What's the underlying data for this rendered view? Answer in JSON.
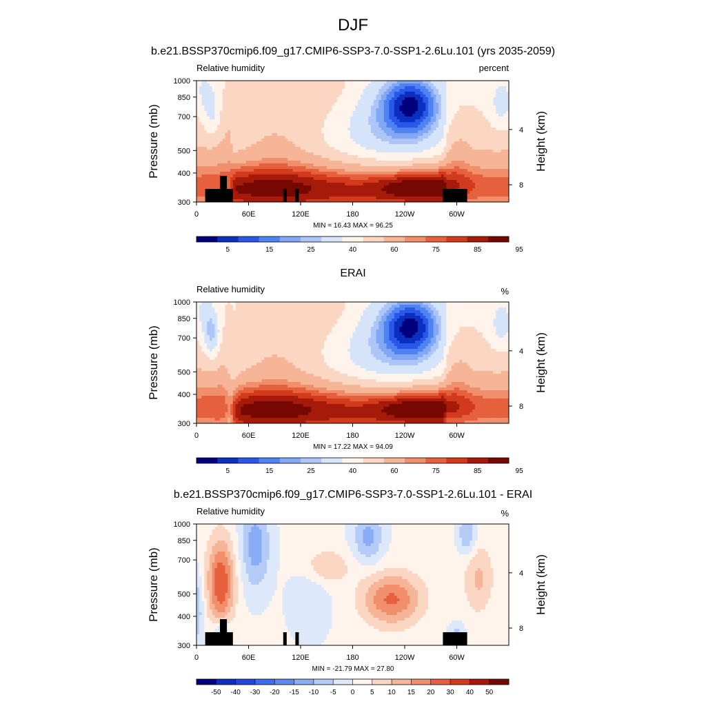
{
  "figure": {
    "title": "DJF",
    "panel_titles": [
      "b.e21.BSSP370cmip6.f09_g17.CMIP6-SSP3-7.0-SSP1-2.6Lu.101 (yrs 2035-2059)",
      "ERAI",
      "b.e21.BSSP370cmip6.f09_g17.CMIP6-SSP3-7.0-SSP1-2.6Lu.101 - ERAI"
    ]
  },
  "chart_data": [
    {
      "type": "heatmap",
      "variable_label": "Relative humidity",
      "units_label": "percent",
      "ylabel": "Pressure (mb)",
      "y2label": "Height (km)",
      "x_ticks": [
        "0",
        "60E",
        "120E",
        "180",
        "120W",
        "60W"
      ],
      "x_tick_lon": [
        0,
        60,
        120,
        180,
        240,
        300
      ],
      "xlim": [
        0,
        360
      ],
      "y_ticks": [
        "300",
        "400",
        "500",
        "700",
        "850",
        "1000"
      ],
      "y_tick_p": [
        300,
        400,
        500,
        700,
        850,
        1000
      ],
      "ylim": [
        1000,
        300
      ],
      "y_scale": "log",
      "y2_ticks": [
        "4",
        "8"
      ],
      "stats": "MIN =  16.43  MAX =  96.25",
      "min": 16.43,
      "max": 96.25,
      "colorbar_labels": [
        "5",
        "15",
        "25",
        "40",
        "60",
        "75",
        "85",
        "95"
      ],
      "colorbar_colors": [
        "#00007f",
        "#0b2fbf",
        "#2a57e8",
        "#4f82f2",
        "#82a8f5",
        "#aec6f7",
        "#d6e4fa",
        "#fff4ec",
        "#fbd6c2",
        "#f7b598",
        "#f18e6c",
        "#e7603e",
        "#d33a1c",
        "#a61a0a",
        "#760800"
      ],
      "topography_blocks": [
        [
          10,
          27
        ],
        [
          27,
          35
        ],
        [
          35,
          42
        ],
        [
          100,
          104
        ],
        [
          114,
          118
        ],
        [
          284,
          312
        ]
      ]
    },
    {
      "type": "heatmap",
      "variable_label": "Relative humidity",
      "units_label": "%",
      "ylabel": "Pressure (mb)",
      "y2label": "Height (km)",
      "x_ticks": [
        "0",
        "60E",
        "120E",
        "180",
        "120W",
        "60W"
      ],
      "x_tick_lon": [
        0,
        60,
        120,
        180,
        240,
        300
      ],
      "xlim": [
        0,
        360
      ],
      "y_ticks": [
        "300",
        "400",
        "500",
        "700",
        "850",
        "1000"
      ],
      "y_tick_p": [
        300,
        400,
        500,
        700,
        850,
        1000
      ],
      "ylim": [
        1000,
        300
      ],
      "y_scale": "log",
      "y2_ticks": [
        "4",
        "8"
      ],
      "stats": "MIN =  17.22  MAX =  94.09",
      "min": 17.22,
      "max": 94.09,
      "colorbar_labels": [
        "5",
        "15",
        "25",
        "40",
        "60",
        "75",
        "85",
        "95"
      ],
      "colorbar_colors": [
        "#00007f",
        "#0b2fbf",
        "#2a57e8",
        "#4f82f2",
        "#82a8f5",
        "#aec6f7",
        "#d6e4fa",
        "#fff4ec",
        "#fbd6c2",
        "#f7b598",
        "#f18e6c",
        "#e7603e",
        "#d33a1c",
        "#a61a0a",
        "#760800"
      ],
      "topography_blocks": []
    },
    {
      "type": "heatmap",
      "variable_label": "Relative humidity",
      "units_label": "%",
      "ylabel": "Pressure (mb)",
      "y2label": "Height (km)",
      "x_ticks": [
        "0",
        "60E",
        "120E",
        "180",
        "120W",
        "60W"
      ],
      "x_tick_lon": [
        0,
        60,
        120,
        180,
        240,
        300
      ],
      "xlim": [
        0,
        360
      ],
      "y_ticks": [
        "300",
        "400",
        "500",
        "700",
        "850",
        "1000"
      ],
      "y_tick_p": [
        300,
        400,
        500,
        700,
        850,
        1000
      ],
      "ylim": [
        1000,
        300
      ],
      "y_scale": "log",
      "y2_ticks": [
        "4",
        "8"
      ],
      "stats": "MIN = -21.79  MAX =  27.80",
      "min": -21.79,
      "max": 27.8,
      "colorbar_labels": [
        "-50",
        "-40",
        "-30",
        "-20",
        "-15",
        "-10",
        "-5",
        "0",
        "5",
        "10",
        "15",
        "20",
        "30",
        "40",
        "50"
      ],
      "colorbar_colors": [
        "#00007f",
        "#0b2fbf",
        "#1f47de",
        "#3a6cec",
        "#5d8cf1",
        "#89acf5",
        "#b4cbf8",
        "#dde8fb",
        "#fff4ec",
        "#fbd6c2",
        "#f7b598",
        "#f18e6c",
        "#e7603e",
        "#d33a1c",
        "#a61a0a",
        "#760800"
      ],
      "topography_blocks": [
        [
          10,
          27
        ],
        [
          27,
          35
        ],
        [
          35,
          42
        ],
        [
          100,
          104
        ],
        [
          114,
          118
        ],
        [
          284,
          312
        ]
      ]
    }
  ]
}
